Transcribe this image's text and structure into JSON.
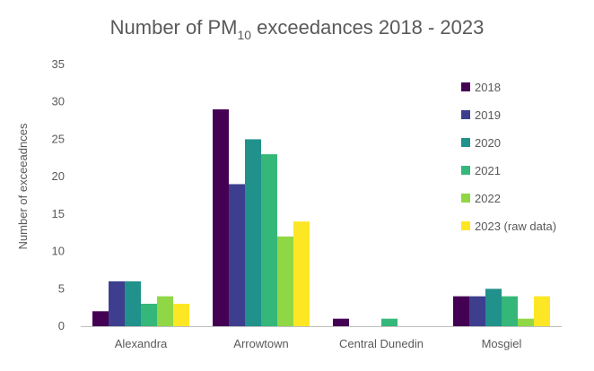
{
  "chart_data": {
    "type": "bar",
    "title": {
      "prefix": "Number of PM",
      "subscript": "10",
      "suffix": " exceedances 2018 - 2023"
    },
    "xlabel": "",
    "ylabel": "Number of exceeadnces",
    "ylim": [
      0,
      35
    ],
    "yticks": [
      0,
      5,
      10,
      15,
      20,
      25,
      30,
      35
    ],
    "grid": false,
    "legend_position": "right",
    "categories": [
      "Alexandra",
      "Arrowtown",
      "Central Dunedin",
      "Mosgiel"
    ],
    "series": [
      {
        "name": "2018",
        "color": "#440154",
        "values": [
          2,
          29,
          1,
          4
        ]
      },
      {
        "name": "2019",
        "color": "#3e3e8f",
        "values": [
          6,
          19,
          0,
          4
        ]
      },
      {
        "name": "2020",
        "color": "#21918c",
        "values": [
          6,
          25,
          0,
          5
        ]
      },
      {
        "name": "2021",
        "color": "#35b779",
        "values": [
          3,
          23,
          1,
          4
        ]
      },
      {
        "name": "2022",
        "color": "#8fd744",
        "values": [
          4,
          12,
          0,
          1
        ]
      },
      {
        "name": "2023 (raw data)",
        "color": "#fde725",
        "values": [
          3,
          14,
          0,
          4
        ]
      }
    ]
  }
}
